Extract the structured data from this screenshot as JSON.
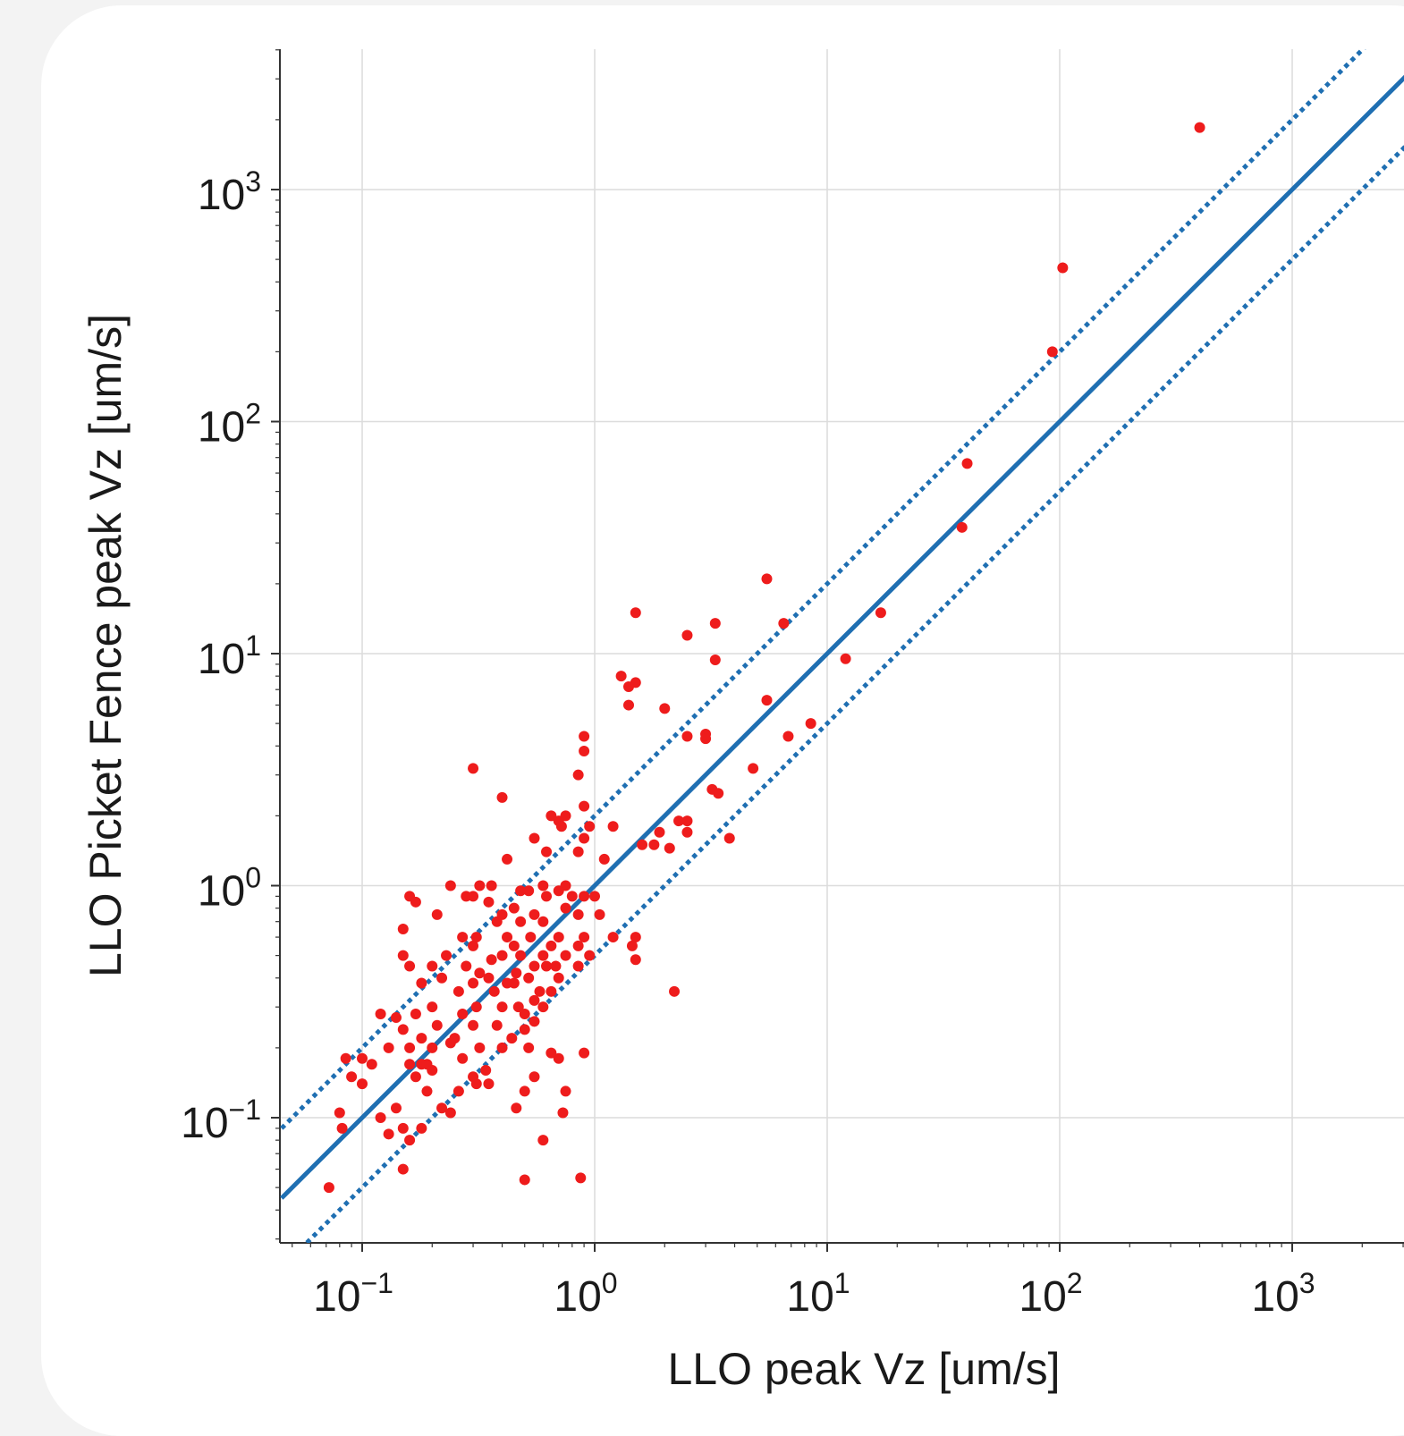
{
  "chart_data": {
    "type": "scatter",
    "title": "",
    "xlabel": "LLO peak Vz [um/s]",
    "ylabel": "LLO Picket Fence peak Vz [um/s]",
    "xscale": "log",
    "yscale": "log",
    "xlim": [
      0.05,
      4500
    ],
    "ylim": [
      0.03,
      4000
    ],
    "grid": true,
    "xticks": [
      {
        "base": "10",
        "exp": "−1",
        "value": 0.1
      },
      {
        "base": "10",
        "exp": "0",
        "value": 1
      },
      {
        "base": "10",
        "exp": "1",
        "value": 10
      },
      {
        "base": "10",
        "exp": "2",
        "value": 100
      },
      {
        "base": "10",
        "exp": "3",
        "value": 1000
      }
    ],
    "yticks": [
      {
        "base": "10",
        "exp": "−1",
        "value": 0.1
      },
      {
        "base": "10",
        "exp": "0",
        "value": 1
      },
      {
        "base": "10",
        "exp": "1",
        "value": 10
      },
      {
        "base": "10",
        "exp": "2",
        "value": 100
      },
      {
        "base": "10",
        "exp": "3",
        "value": 1000
      }
    ],
    "reference_lines": [
      {
        "style": "solid",
        "color": "#1f6fb2",
        "factor": 1
      },
      {
        "style": "dotted",
        "color": "#1f6fb2",
        "factor": 2
      },
      {
        "style": "dotted",
        "color": "#1f6fb2",
        "factor": 0.5
      }
    ],
    "marker_color": "#ee1c1c",
    "points": [
      [
        400,
        1850
      ],
      [
        103,
        460
      ],
      [
        93,
        200
      ],
      [
        40,
        66
      ],
      [
        38,
        35
      ],
      [
        17,
        15
      ],
      [
        12,
        9.5
      ],
      [
        8.5,
        5
      ],
      [
        6.5,
        13.5
      ],
      [
        6.8,
        4.4
      ],
      [
        5.5,
        21
      ],
      [
        5.5,
        6.3
      ],
      [
        4.8,
        3.2
      ],
      [
        3.8,
        1.6
      ],
      [
        3.3,
        13.5
      ],
      [
        3.3,
        9.4
      ],
      [
        3.2,
        2.6
      ],
      [
        3.4,
        2.5
      ],
      [
        3.0,
        4.5
      ],
      [
        3.0,
        4.3
      ],
      [
        2.5,
        12
      ],
      [
        2.5,
        4.4
      ],
      [
        2.5,
        1.9
      ],
      [
        2.5,
        1.7
      ],
      [
        2.3,
        1.9
      ],
      [
        2.0,
        5.8
      ],
      [
        2.1,
        1.45
      ],
      [
        2.2,
        0.35
      ],
      [
        1.9,
        1.7
      ],
      [
        1.8,
        1.5
      ],
      [
        1.6,
        1.5
      ],
      [
        1.5,
        15
      ],
      [
        1.5,
        7.5
      ],
      [
        1.3,
        8
      ],
      [
        1.4,
        7.2
      ],
      [
        1.4,
        6
      ],
      [
        1.2,
        1.8
      ],
      [
        1.1,
        1.3
      ],
      [
        1.0,
        0.9
      ],
      [
        1.05,
        0.75
      ],
      [
        1.5,
        0.6
      ],
      [
        1.45,
        0.55
      ],
      [
        1.5,
        0.48
      ],
      [
        1.2,
        0.6
      ],
      [
        0.9,
        4.4
      ],
      [
        0.9,
        3.8
      ],
      [
        0.85,
        3.0
      ],
      [
        0.9,
        2.2
      ],
      [
        0.95,
        1.8
      ],
      [
        0.9,
        1.6
      ],
      [
        0.85,
        1.4
      ],
      [
        0.9,
        0.9
      ],
      [
        0.85,
        0.75
      ],
      [
        0.9,
        0.6
      ],
      [
        0.85,
        0.55
      ],
      [
        0.95,
        0.5
      ],
      [
        0.85,
        0.45
      ],
      [
        0.9,
        0.19
      ],
      [
        0.87,
        0.055
      ],
      [
        0.75,
        2.0
      ],
      [
        0.7,
        1.9
      ],
      [
        0.72,
        1.8
      ],
      [
        0.75,
        1.0
      ],
      [
        0.7,
        0.95
      ],
      [
        0.8,
        0.9
      ],
      [
        0.75,
        0.8
      ],
      [
        0.7,
        0.6
      ],
      [
        0.75,
        0.5
      ],
      [
        0.68,
        0.45
      ],
      [
        0.7,
        0.4
      ],
      [
        0.65,
        0.35
      ],
      [
        0.7,
        0.18
      ],
      [
        0.75,
        0.13
      ],
      [
        0.73,
        0.105
      ],
      [
        0.65,
        2.0
      ],
      [
        0.62,
        1.4
      ],
      [
        0.6,
        1.0
      ],
      [
        0.62,
        0.9
      ],
      [
        0.6,
        0.7
      ],
      [
        0.65,
        0.55
      ],
      [
        0.6,
        0.5
      ],
      [
        0.62,
        0.45
      ],
      [
        0.58,
        0.35
      ],
      [
        0.6,
        0.3
      ],
      [
        0.65,
        0.19
      ],
      [
        0.6,
        0.08
      ],
      [
        0.55,
        1.6
      ],
      [
        0.52,
        0.95
      ],
      [
        0.55,
        0.75
      ],
      [
        0.53,
        0.6
      ],
      [
        0.55,
        0.45
      ],
      [
        0.52,
        0.4
      ],
      [
        0.55,
        0.32
      ],
      [
        0.5,
        0.28
      ],
      [
        0.55,
        0.26
      ],
      [
        0.5,
        0.24
      ],
      [
        0.52,
        0.2
      ],
      [
        0.55,
        0.15
      ],
      [
        0.5,
        0.13
      ],
      [
        0.5,
        0.054
      ],
      [
        0.48,
        0.95
      ],
      [
        0.45,
        0.8
      ],
      [
        0.48,
        0.7
      ],
      [
        0.45,
        0.55
      ],
      [
        0.48,
        0.5
      ],
      [
        0.46,
        0.42
      ],
      [
        0.45,
        0.38
      ],
      [
        0.47,
        0.3
      ],
      [
        0.44,
        0.22
      ],
      [
        0.46,
        0.11
      ],
      [
        0.42,
        1.3
      ],
      [
        0.4,
        2.4
      ],
      [
        0.4,
        0.75
      ],
      [
        0.42,
        0.6
      ],
      [
        0.4,
        0.5
      ],
      [
        0.42,
        0.38
      ],
      [
        0.4,
        0.3
      ],
      [
        0.38,
        0.25
      ],
      [
        0.4,
        0.2
      ],
      [
        0.36,
        1.0
      ],
      [
        0.35,
        0.85
      ],
      [
        0.38,
        0.7
      ],
      [
        0.36,
        0.48
      ],
      [
        0.35,
        0.4
      ],
      [
        0.37,
        0.35
      ],
      [
        0.35,
        0.14
      ],
      [
        0.34,
        0.16
      ],
      [
        0.3,
        3.2
      ],
      [
        0.32,
        1.0
      ],
      [
        0.3,
        0.9
      ],
      [
        0.31,
        0.6
      ],
      [
        0.3,
        0.55
      ],
      [
        0.32,
        0.42
      ],
      [
        0.3,
        0.38
      ],
      [
        0.31,
        0.3
      ],
      [
        0.3,
        0.25
      ],
      [
        0.32,
        0.2
      ],
      [
        0.3,
        0.15
      ],
      [
        0.31,
        0.14
      ],
      [
        0.28,
        0.9
      ],
      [
        0.27,
        0.6
      ],
      [
        0.28,
        0.45
      ],
      [
        0.26,
        0.35
      ],
      [
        0.27,
        0.28
      ],
      [
        0.25,
        0.22
      ],
      [
        0.27,
        0.18
      ],
      [
        0.26,
        0.13
      ],
      [
        0.24,
        1.0
      ],
      [
        0.23,
        0.5
      ],
      [
        0.24,
        0.21
      ],
      [
        0.22,
        0.11
      ],
      [
        0.24,
        0.105
      ],
      [
        0.21,
        0.75
      ],
      [
        0.2,
        0.45
      ],
      [
        0.22,
        0.4
      ],
      [
        0.2,
        0.3
      ],
      [
        0.21,
        0.25
      ],
      [
        0.2,
        0.2
      ],
      [
        0.19,
        0.17
      ],
      [
        0.2,
        0.16
      ],
      [
        0.18,
        0.38
      ],
      [
        0.17,
        0.28
      ],
      [
        0.18,
        0.22
      ],
      [
        0.17,
        0.15
      ],
      [
        0.18,
        0.09
      ],
      [
        0.16,
        0.9
      ],
      [
        0.17,
        0.85
      ],
      [
        0.15,
        0.65
      ],
      [
        0.15,
        0.5
      ],
      [
        0.16,
        0.45
      ],
      [
        0.15,
        0.24
      ],
      [
        0.16,
        0.2
      ],
      [
        0.15,
        0.09
      ],
      [
        0.16,
        0.08
      ],
      [
        0.15,
        0.06
      ],
      [
        0.14,
        0.27
      ],
      [
        0.13,
        0.2
      ],
      [
        0.14,
        0.11
      ],
      [
        0.13,
        0.085
      ],
      [
        0.12,
        0.28
      ],
      [
        0.12,
        0.1
      ],
      [
        0.11,
        0.17
      ],
      [
        0.1,
        0.14
      ],
      [
        0.1,
        0.18
      ],
      [
        0.09,
        0.15
      ],
      [
        0.085,
        0.18
      ],
      [
        0.08,
        0.105
      ],
      [
        0.082,
        0.09
      ],
      [
        0.072,
        0.05
      ],
      [
        0.18,
        0.17
      ],
      [
        0.16,
        0.17
      ],
      [
        0.19,
        0.13
      ]
    ]
  }
}
